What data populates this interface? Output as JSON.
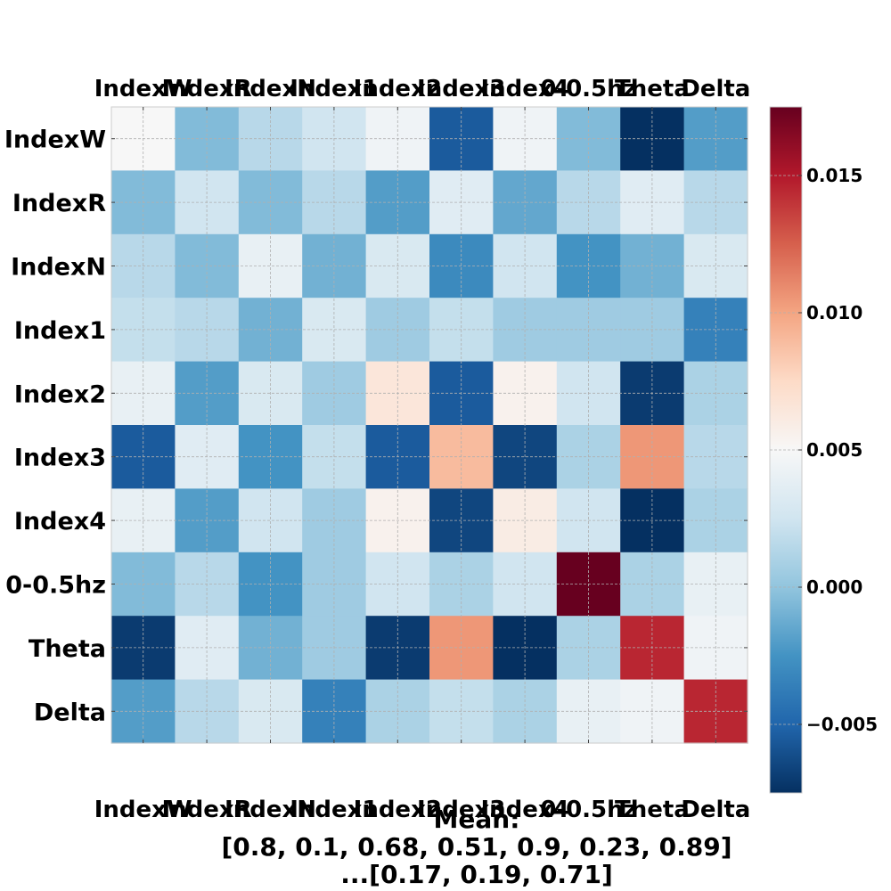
{
  "chart_data": {
    "type": "heatmap",
    "labels": [
      "IndexW",
      "IndexR",
      "IndexN",
      "Index1",
      "Index2",
      "Index3",
      "Index4",
      "0-0.5hz",
      "Theta",
      "Delta"
    ],
    "values": [
      [
        0.005,
        -0.0005,
        0.0015,
        0.0025,
        0.0045,
        -0.0055,
        0.0045,
        -0.0005,
        -0.0075,
        -0.002
      ],
      [
        -0.0005,
        0.0025,
        -0.0005,
        0.0015,
        -0.002,
        0.0035,
        -0.0015,
        0.0015,
        0.0035,
        0.0015
      ],
      [
        0.0015,
        -0.0005,
        0.004,
        -0.001,
        0.003,
        -0.003,
        0.0025,
        -0.0025,
        -0.001,
        0.003
      ],
      [
        0.002,
        0.0015,
        -0.001,
        0.003,
        0.0005,
        0.002,
        0.0005,
        0.0005,
        0.0005,
        -0.0035
      ],
      [
        0.004,
        -0.002,
        0.003,
        0.0005,
        0.0065,
        -0.0055,
        0.0055,
        0.0025,
        -0.007,
        0.001
      ],
      [
        -0.0055,
        0.0035,
        -0.0025,
        0.002,
        -0.0055,
        0.009,
        -0.0065,
        0.001,
        0.0105,
        0.0015
      ],
      [
        0.004,
        -0.002,
        0.0025,
        0.0005,
        0.0055,
        -0.0065,
        0.006,
        0.0025,
        -0.0075,
        0.001
      ],
      [
        -0.0005,
        0.0015,
        -0.0025,
        0.0005,
        0.0025,
        0.001,
        0.0025,
        0.0175,
        0.001,
        0.004
      ],
      [
        -0.007,
        0.0035,
        -0.001,
        0.0005,
        -0.007,
        0.0105,
        -0.0075,
        0.001,
        0.0145,
        0.0045
      ],
      [
        -0.002,
        0.0015,
        0.003,
        -0.0035,
        0.001,
        0.002,
        0.001,
        0.004,
        0.0045,
        0.0145
      ]
    ],
    "vmin": -0.0075,
    "vmax": 0.0175,
    "colormap": "RdBu_r",
    "grid": true,
    "colorbar": {
      "ticks": [
        -0.005,
        0.0,
        0.005,
        0.01,
        0.015
      ],
      "tick_labels": [
        "−0.005",
        "0.000",
        "0.005",
        "0.010",
        "0.015"
      ],
      "placement": "right"
    },
    "caption_lines": [
      "Mean:",
      "[0.8, 0.1, 0.68, 0.51, 0.9, 0.23, 0.89]",
      "...[0.17, 0.19, 0.71]"
    ]
  }
}
